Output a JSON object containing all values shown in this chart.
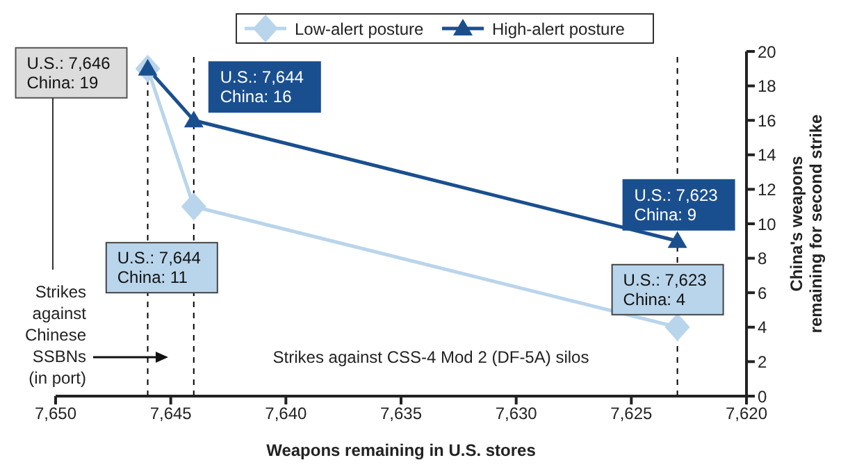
{
  "chart_data": {
    "type": "line",
    "xlabel": "Weapons remaining in U.S. stores",
    "ylabel": "China's weapons remaining for second strike",
    "x": [
      7646,
      7644,
      7623
    ],
    "series": [
      {
        "name": "Low-alert posture",
        "color": "#b9d5eb",
        "marker": "diamond",
        "values": [
          19,
          11,
          4
        ]
      },
      {
        "name": "High-alert posture",
        "color": "#1a4f8f",
        "marker": "triangle",
        "values": [
          19,
          16,
          9
        ]
      }
    ],
    "xlim": [
      7650,
      7620
    ],
    "xticks": [
      {
        "value": 7650,
        "label": "7,650"
      },
      {
        "value": 7645,
        "label": "7,645"
      },
      {
        "value": 7640,
        "label": "7,640"
      },
      {
        "value": 7635,
        "label": "7,635"
      },
      {
        "value": 7630,
        "label": "7,630"
      },
      {
        "value": 7625,
        "label": "7,625"
      },
      {
        "value": 7620,
        "label": "7,620"
      }
    ],
    "ylim": [
      0,
      20
    ],
    "yticks": [
      0,
      2,
      4,
      6,
      8,
      10,
      12,
      14,
      16,
      18,
      20
    ],
    "ref_lines": [
      {
        "axis": "x",
        "value": 7646,
        "color": "#000000",
        "line_style": "dashed"
      },
      {
        "axis": "x",
        "value": 7644,
        "color": "#000000",
        "line_style": "dashed"
      },
      {
        "axis": "x",
        "value": 7623,
        "color": "#000000",
        "line_style": "dashed"
      }
    ],
    "annotations": [
      {
        "text": "U.S.: 7,646\nChina: 19",
        "x": 7646,
        "y": 19
      },
      {
        "text": "U.S.: 7,644\nChina: 16",
        "x": 7644,
        "y": 16
      },
      {
        "text": "U.S.: 7,644\nChina: 11",
        "x": 7644,
        "y": 11
      },
      {
        "text": "U.S.: 7,623\nChina: 9",
        "x": 7623,
        "y": 9
      },
      {
        "text": "U.S.: 7,623\nChina: 4",
        "x": 7623,
        "y": 4
      },
      "Strikes against Chinese SSBNs (in port)",
      "Strikes against CSS-4 Mod 2 (DF-5A) silos"
    ],
    "grid": false,
    "legend": "top"
  }
}
